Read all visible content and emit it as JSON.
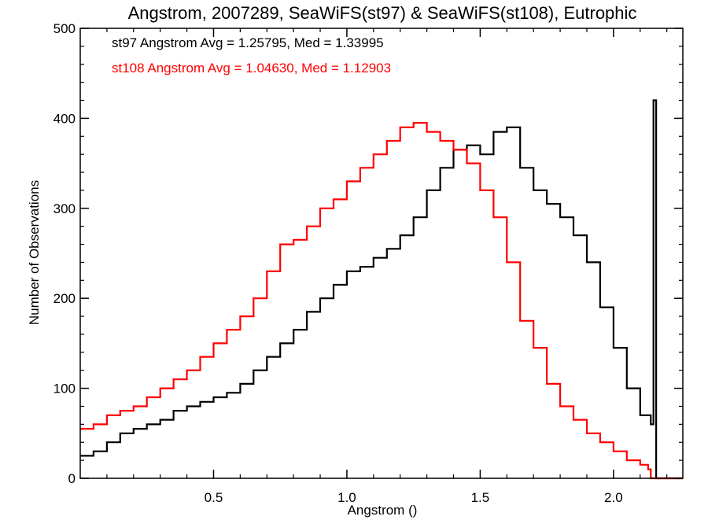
{
  "chart_data": {
    "type": "line",
    "title": "Angstrom, 2007289, SeaWiFS(st97) & SeaWiFS(st108), Eutrophic",
    "xlabel": "Angstrom ()",
    "ylabel": "Number of Observations",
    "xlim": [
      0.0,
      2.26
    ],
    "ylim": [
      0,
      500
    ],
    "xticks": [
      0.5,
      1.0,
      1.5,
      2.0
    ],
    "xtick_labels": [
      "0.5",
      "1.0",
      "1.5",
      "2.0"
    ],
    "yticks": [
      0,
      100,
      200,
      300,
      400,
      500
    ],
    "ytick_labels": [
      "0",
      "100",
      "200",
      "300",
      "400",
      "500"
    ],
    "grid": false,
    "annotations": [
      {
        "text": "st97 Angstrom Avg = 1.25795, Med = 1.33995",
        "color": "#000000"
      },
      {
        "text": "st108 Angstrom Avg = 1.04630, Med = 1.12903",
        "color": "#ff0000"
      }
    ],
    "series": [
      {
        "color": "#000000",
        "x": [
          0.0,
          0.05,
          0.1,
          0.15,
          0.2,
          0.25,
          0.3,
          0.35,
          0.4,
          0.45,
          0.5,
          0.55,
          0.6,
          0.65,
          0.7,
          0.75,
          0.8,
          0.85,
          0.9,
          0.95,
          1.0,
          1.05,
          1.1,
          1.15,
          1.2,
          1.25,
          1.3,
          1.35,
          1.4,
          1.45,
          1.5,
          1.55,
          1.6,
          1.65,
          1.7,
          1.75,
          1.8,
          1.85,
          1.9,
          1.95,
          2.0,
          2.05,
          2.1,
          2.14,
          2.15,
          2.16,
          2.2,
          2.26
        ],
        "y": [
          25,
          30,
          40,
          50,
          55,
          60,
          65,
          75,
          80,
          85,
          90,
          95,
          105,
          120,
          135,
          150,
          165,
          185,
          200,
          215,
          230,
          235,
          245,
          255,
          270,
          290,
          320,
          345,
          365,
          370,
          360,
          385,
          390,
          345,
          320,
          305,
          290,
          270,
          240,
          190,
          145,
          100,
          70,
          60,
          420,
          0,
          0,
          0
        ]
      },
      {
        "color": "#ff0000",
        "x": [
          0.0,
          0.05,
          0.1,
          0.15,
          0.2,
          0.25,
          0.3,
          0.35,
          0.4,
          0.45,
          0.5,
          0.55,
          0.6,
          0.65,
          0.7,
          0.75,
          0.8,
          0.85,
          0.9,
          0.95,
          1.0,
          1.05,
          1.1,
          1.15,
          1.2,
          1.25,
          1.3,
          1.35,
          1.4,
          1.45,
          1.5,
          1.55,
          1.6,
          1.65,
          1.7,
          1.75,
          1.8,
          1.85,
          1.9,
          1.95,
          2.0,
          2.05,
          2.1,
          2.13,
          2.14,
          2.2,
          2.26
        ],
        "y": [
          55,
          60,
          70,
          75,
          80,
          90,
          100,
          110,
          120,
          135,
          150,
          165,
          180,
          200,
          230,
          260,
          265,
          280,
          300,
          310,
          330,
          345,
          360,
          375,
          390,
          395,
          385,
          375,
          365,
          350,
          320,
          290,
          240,
          175,
          145,
          105,
          80,
          65,
          50,
          40,
          30,
          20,
          15,
          10,
          0,
          0,
          0
        ]
      }
    ]
  }
}
